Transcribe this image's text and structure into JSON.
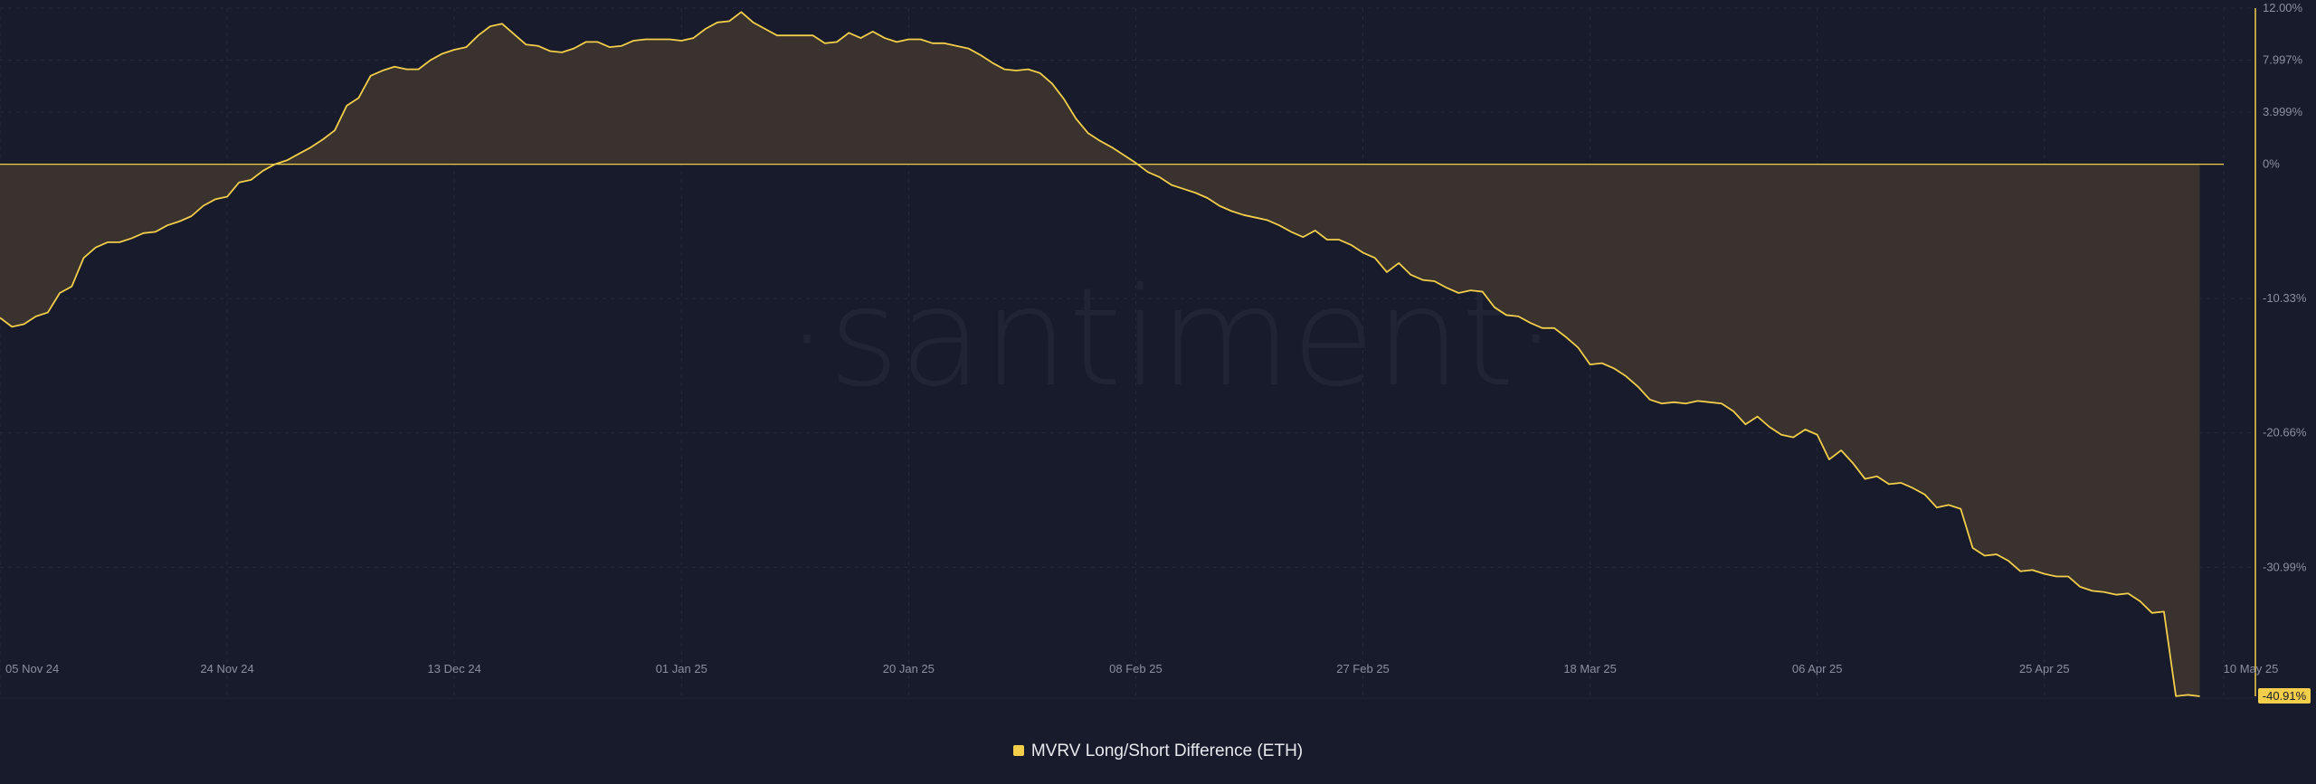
{
  "watermark": "·santiment·",
  "legend": {
    "label": "MVRV Long/Short Difference (ETH)",
    "color": "#f3ce4a"
  },
  "last_value_label": "-40.91%",
  "colors": {
    "background": "#181b2b",
    "line": "#f3ce4a",
    "area": "#3b342f",
    "grid": "#262a3c",
    "tick": "#8b8fa3"
  },
  "chart_data": {
    "type": "area",
    "title": "",
    "xlabel": "",
    "ylabel": "",
    "grid": true,
    "legend_position": "bottom-center",
    "y_axis_position": "right",
    "ylim": [
      -40.91,
      12.0
    ],
    "y_tick_values": [
      12.0,
      7.997,
      3.999,
      0,
      -10.33,
      -20.66,
      -30.99
    ],
    "y_tick_labels": [
      "12.00%",
      "7.997%",
      "3.999%",
      "0%",
      "-10.33%",
      "-20.66%",
      "-30.99%"
    ],
    "x_range": [
      "2024-11-05",
      "2025-05-10"
    ],
    "x_tick_dates": [
      "2024-11-05",
      "2024-11-24",
      "2024-12-13",
      "2025-01-01",
      "2025-01-20",
      "2025-02-08",
      "2025-02-27",
      "2025-03-18",
      "2025-04-06",
      "2025-04-25",
      "2025-05-10"
    ],
    "x_tick_labels": [
      "05 Nov 24",
      "24 Nov 24",
      "13 Dec 24",
      "01 Jan 25",
      "20 Jan 25",
      "08 Feb 25",
      "27 Feb 25",
      "18 Mar 25",
      "06 Apr 25",
      "25 Apr 25",
      "10 May 25"
    ],
    "series": [
      {
        "name": "MVRV Long/Short Difference (ETH)",
        "points": [
          [
            "2024-11-05",
            -11.8
          ],
          [
            "2024-11-06",
            -12.5
          ],
          [
            "2024-11-07",
            -12.3
          ],
          [
            "2024-11-08",
            -11.7
          ],
          [
            "2024-11-09",
            -11.4
          ],
          [
            "2024-11-10",
            -9.9
          ],
          [
            "2024-11-11",
            -9.4
          ],
          [
            "2024-11-12",
            -7.2
          ],
          [
            "2024-11-13",
            -6.4
          ],
          [
            "2024-11-14",
            -6.0
          ],
          [
            "2024-11-15",
            -6.0
          ],
          [
            "2024-11-16",
            -5.7
          ],
          [
            "2024-11-17",
            -5.3
          ],
          [
            "2024-11-18",
            -5.2
          ],
          [
            "2024-11-19",
            -4.7
          ],
          [
            "2024-11-20",
            -4.4
          ],
          [
            "2024-11-21",
            -4.0
          ],
          [
            "2024-11-22",
            -3.2
          ],
          [
            "2024-11-23",
            -2.7
          ],
          [
            "2024-11-24",
            -2.5
          ],
          [
            "2024-11-25",
            -1.4
          ],
          [
            "2024-11-26",
            -1.2
          ],
          [
            "2024-11-27",
            -0.5
          ],
          [
            "2024-11-28",
            0.0
          ],
          [
            "2024-11-29",
            0.3
          ],
          [
            "2024-11-30",
            0.8
          ],
          [
            "2024-12-01",
            1.3
          ],
          [
            "2024-12-02",
            1.9
          ],
          [
            "2024-12-03",
            2.6
          ],
          [
            "2024-12-04",
            4.5
          ],
          [
            "2024-12-05",
            5.1
          ],
          [
            "2024-12-06",
            6.8
          ],
          [
            "2024-12-07",
            7.2
          ],
          [
            "2024-12-08",
            7.5
          ],
          [
            "2024-12-09",
            7.3
          ],
          [
            "2024-12-10",
            7.3
          ],
          [
            "2024-12-11",
            8.0
          ],
          [
            "2024-12-12",
            8.5
          ],
          [
            "2024-12-13",
            8.8
          ],
          [
            "2024-12-14",
            9.0
          ],
          [
            "2024-12-15",
            9.9
          ],
          [
            "2024-12-16",
            10.6
          ],
          [
            "2024-12-17",
            10.8
          ],
          [
            "2024-12-18",
            10.0
          ],
          [
            "2024-12-19",
            9.2
          ],
          [
            "2024-12-20",
            9.1
          ],
          [
            "2024-12-21",
            8.7
          ],
          [
            "2024-12-22",
            8.6
          ],
          [
            "2024-12-23",
            8.9
          ],
          [
            "2024-12-24",
            9.4
          ],
          [
            "2024-12-25",
            9.4
          ],
          [
            "2024-12-26",
            9.0
          ],
          [
            "2024-12-27",
            9.1
          ],
          [
            "2024-12-28",
            9.5
          ],
          [
            "2024-12-29",
            9.6
          ],
          [
            "2024-12-30",
            9.6
          ],
          [
            "2024-12-31",
            9.6
          ],
          [
            "2025-01-01",
            9.5
          ],
          [
            "2025-01-02",
            9.7
          ],
          [
            "2025-01-03",
            10.4
          ],
          [
            "2025-01-04",
            10.9
          ],
          [
            "2025-01-05",
            11.0
          ],
          [
            "2025-01-06",
            11.7
          ],
          [
            "2025-01-07",
            10.9
          ],
          [
            "2025-01-08",
            10.4
          ],
          [
            "2025-01-09",
            9.9
          ],
          [
            "2025-01-10",
            9.9
          ],
          [
            "2025-01-11",
            9.9
          ],
          [
            "2025-01-12",
            9.9
          ],
          [
            "2025-01-13",
            9.3
          ],
          [
            "2025-01-14",
            9.4
          ],
          [
            "2025-01-15",
            10.1
          ],
          [
            "2025-01-16",
            9.7
          ],
          [
            "2025-01-17",
            10.2
          ],
          [
            "2025-01-18",
            9.7
          ],
          [
            "2025-01-19",
            9.4
          ],
          [
            "2025-01-20",
            9.6
          ],
          [
            "2025-01-21",
            9.6
          ],
          [
            "2025-01-22",
            9.3
          ],
          [
            "2025-01-23",
            9.3
          ],
          [
            "2025-01-24",
            9.1
          ],
          [
            "2025-01-25",
            8.9
          ],
          [
            "2025-01-26",
            8.4
          ],
          [
            "2025-01-27",
            7.8
          ],
          [
            "2025-01-28",
            7.3
          ],
          [
            "2025-01-29",
            7.2
          ],
          [
            "2025-01-30",
            7.3
          ],
          [
            "2025-01-31",
            7.0
          ],
          [
            "2025-02-01",
            6.2
          ],
          [
            "2025-02-02",
            5.0
          ],
          [
            "2025-02-03",
            3.5
          ],
          [
            "2025-02-04",
            2.4
          ],
          [
            "2025-02-05",
            1.8
          ],
          [
            "2025-02-06",
            1.3
          ],
          [
            "2025-02-07",
            0.7
          ],
          [
            "2025-02-08",
            0.1
          ],
          [
            "2025-02-09",
            -0.6
          ],
          [
            "2025-02-10",
            -1.0
          ],
          [
            "2025-02-11",
            -1.6
          ],
          [
            "2025-02-12",
            -1.9
          ],
          [
            "2025-02-13",
            -2.2
          ],
          [
            "2025-02-14",
            -2.6
          ],
          [
            "2025-02-15",
            -3.2
          ],
          [
            "2025-02-16",
            -3.6
          ],
          [
            "2025-02-17",
            -3.9
          ],
          [
            "2025-02-18",
            -4.1
          ],
          [
            "2025-02-19",
            -4.3
          ],
          [
            "2025-02-20",
            -4.7
          ],
          [
            "2025-02-21",
            -5.2
          ],
          [
            "2025-02-22",
            -5.6
          ],
          [
            "2025-02-23",
            -5.1
          ],
          [
            "2025-02-24",
            -5.8
          ],
          [
            "2025-02-25",
            -5.8
          ],
          [
            "2025-02-26",
            -6.2
          ],
          [
            "2025-02-27",
            -6.8
          ],
          [
            "2025-02-28",
            -7.2
          ],
          [
            "2025-03-01",
            -8.3
          ],
          [
            "2025-03-02",
            -7.6
          ],
          [
            "2025-03-03",
            -8.5
          ],
          [
            "2025-03-04",
            -8.9
          ],
          [
            "2025-03-05",
            -9.0
          ],
          [
            "2025-03-06",
            -9.5
          ],
          [
            "2025-03-07",
            -9.9
          ],
          [
            "2025-03-08",
            -9.7
          ],
          [
            "2025-03-09",
            -9.8
          ],
          [
            "2025-03-10",
            -11.0
          ],
          [
            "2025-03-11",
            -11.6
          ],
          [
            "2025-03-12",
            -11.7
          ],
          [
            "2025-03-13",
            -12.2
          ],
          [
            "2025-03-14",
            -12.6
          ],
          [
            "2025-03-15",
            -12.6
          ],
          [
            "2025-03-16",
            -13.3
          ],
          [
            "2025-03-17",
            -14.1
          ],
          [
            "2025-03-18",
            -15.4
          ],
          [
            "2025-03-19",
            -15.3
          ],
          [
            "2025-03-20",
            -15.7
          ],
          [
            "2025-03-21",
            -16.3
          ],
          [
            "2025-03-22",
            -17.1
          ],
          [
            "2025-03-23",
            -18.1
          ],
          [
            "2025-03-24",
            -18.4
          ],
          [
            "2025-03-25",
            -18.3
          ],
          [
            "2025-03-26",
            -18.4
          ],
          [
            "2025-03-27",
            -18.2
          ],
          [
            "2025-03-28",
            -18.3
          ],
          [
            "2025-03-29",
            -18.4
          ],
          [
            "2025-03-30",
            -19.0
          ],
          [
            "2025-03-31",
            -20.0
          ],
          [
            "2025-04-01",
            -19.4
          ],
          [
            "2025-04-02",
            -20.2
          ],
          [
            "2025-04-03",
            -20.8
          ],
          [
            "2025-04-04",
            -21.0
          ],
          [
            "2025-04-05",
            -20.4
          ],
          [
            "2025-04-06",
            -20.8
          ],
          [
            "2025-04-07",
            -22.7
          ],
          [
            "2025-04-08",
            -22.0
          ],
          [
            "2025-04-09",
            -23.0
          ],
          [
            "2025-04-10",
            -24.2
          ],
          [
            "2025-04-11",
            -24.0
          ],
          [
            "2025-04-12",
            -24.6
          ],
          [
            "2025-04-13",
            -24.5
          ],
          [
            "2025-04-14",
            -24.9
          ],
          [
            "2025-04-15",
            -25.4
          ],
          [
            "2025-04-16",
            -26.4
          ],
          [
            "2025-04-17",
            -26.2
          ],
          [
            "2025-04-18",
            -26.5
          ],
          [
            "2025-04-19",
            -29.5
          ],
          [
            "2025-04-20",
            -30.1
          ],
          [
            "2025-04-21",
            -30.0
          ],
          [
            "2025-04-22",
            -30.5
          ],
          [
            "2025-04-23",
            -31.3
          ],
          [
            "2025-04-24",
            -31.2
          ],
          [
            "2025-04-25",
            -31.5
          ],
          [
            "2025-04-26",
            -31.7
          ],
          [
            "2025-04-27",
            -31.7
          ],
          [
            "2025-04-28",
            -32.5
          ],
          [
            "2025-04-29",
            -32.8
          ],
          [
            "2025-04-30",
            -32.9
          ],
          [
            "2025-05-01",
            -33.1
          ],
          [
            "2025-05-02",
            -33.0
          ],
          [
            "2025-05-03",
            -33.6
          ],
          [
            "2025-05-04",
            -34.5
          ],
          [
            "2025-05-05",
            -34.4
          ],
          [
            "2025-05-06",
            -40.9
          ],
          [
            "2025-05-07",
            -40.8
          ],
          [
            "2025-05-08",
            -40.91
          ]
        ]
      }
    ]
  }
}
